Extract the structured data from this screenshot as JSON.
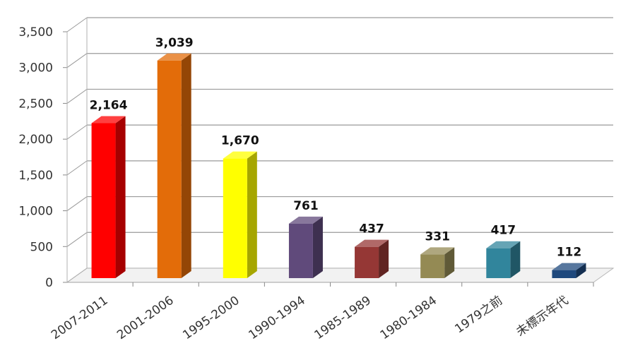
{
  "chart_data": {
    "type": "bar",
    "style": "3d-column",
    "title": "",
    "xlabel": "",
    "ylabel": "",
    "categories": [
      "2007-2011",
      "2001-2006",
      "1995-2000",
      "1990-1994",
      "1985-1989",
      "1980-1984",
      "1979之前",
      "未標示年代"
    ],
    "values": [
      2164,
      3039,
      1670,
      761,
      437,
      331,
      417,
      112
    ],
    "data_labels": [
      "2,164",
      "3,039",
      "1,670",
      "761",
      "437",
      "331",
      "417",
      "112"
    ],
    "colors": [
      "#ff0000",
      "#e36c09",
      "#ffff00",
      "#604a7b",
      "#953735",
      "#948a54",
      "#31859c",
      "#1f497d"
    ],
    "ylim": [
      0,
      3500
    ],
    "y_ticks": [
      0,
      500,
      1000,
      1500,
      2000,
      2500,
      3000,
      3500
    ],
    "y_tick_labels": [
      "0",
      "500",
      "1,000",
      "1,500",
      "2,000",
      "2,500",
      "3,000",
      "3,500"
    ],
    "grid": true,
    "legend": "none"
  }
}
